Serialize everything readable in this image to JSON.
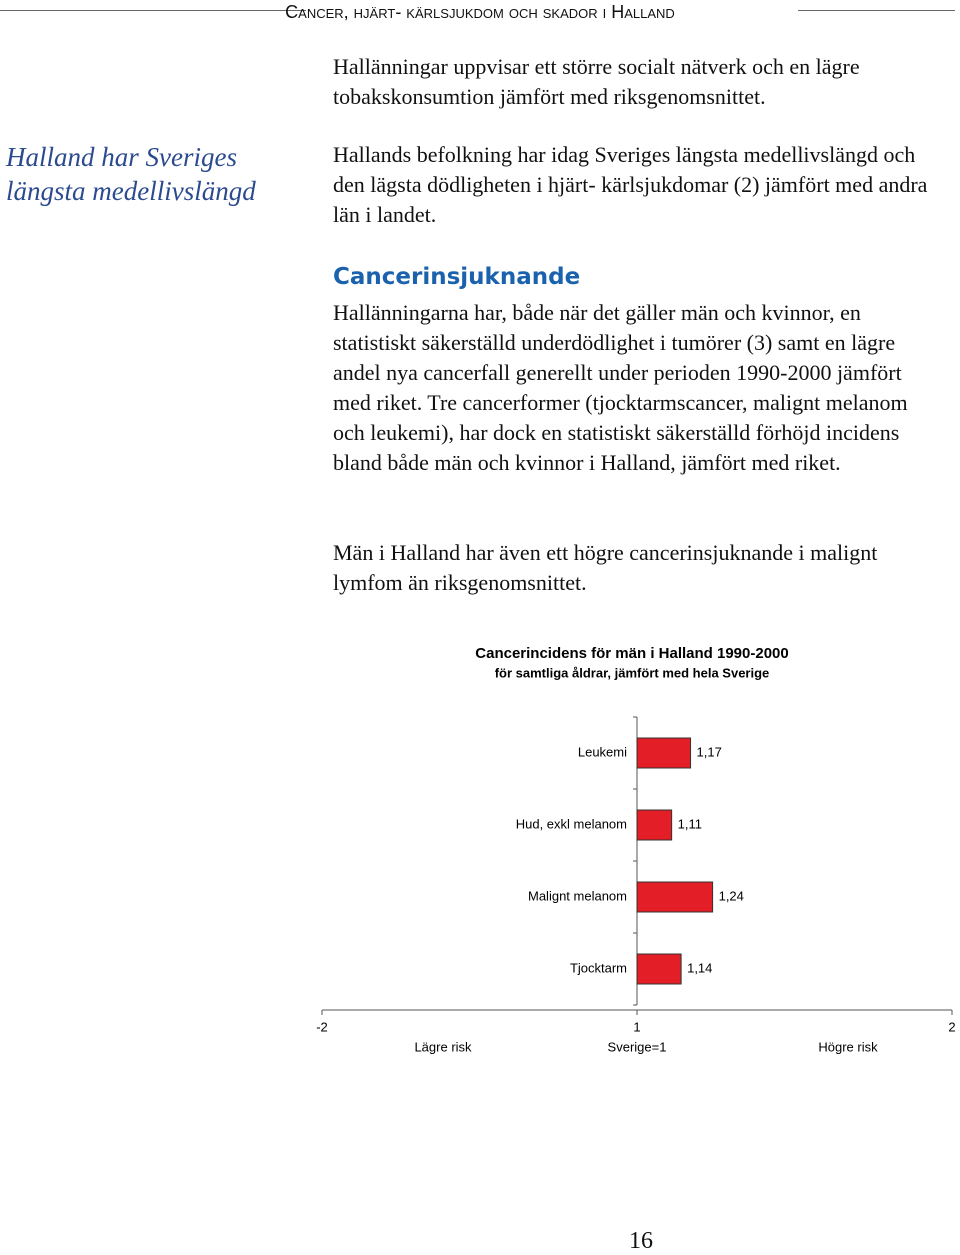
{
  "header": {
    "title": "Cancer, hjärt- kärlsjukdom och skador i Halland"
  },
  "intro": "Hallänningar uppvisar ett större socialt nätverk och en lägre tobakskonsumtion jämfört med riksgenomsnittet.",
  "sidebar": {
    "heading": "Halland har Sveriges längsta medellivslängd"
  },
  "lead": "Hallands befolkning har idag Sveriges längsta medellivslängd och den lägsta dödligheten i hjärt- kärlsjukdomar (2) jämfört med andra län i landet.",
  "section": {
    "heading": "Cancerinsjuknande",
    "paragraphs": [
      "Hallänningarna har, både när det gäller män och kvinnor, en statistiskt säkerställd underdödlighet i tumörer (3) samt en lägre andel nya cancerfall generellt under perioden 1990-2000 jämfört med riket. Tre cancerformer (tjocktarmscancer, malignt melanom och leukemi), har dock en statistiskt säkerställd förhöjd incidens bland både män och kvinnor i Halland, jämfört med riket.",
      "Män i Halland har även ett högre cancerinsjuknande i malignt lymfom än riksgenomsnittet."
    ]
  },
  "chart_data": {
    "type": "hbar",
    "title": "Cancerincidens för män i Halland 1990-2000",
    "subtitle": "för samtliga åldrar, jämfört med hela Sverige",
    "categories": [
      "Leukemi",
      "Hud, exkl melanom",
      "Malignt melanom",
      "Tjocktarm"
    ],
    "values": [
      1.17,
      1.11,
      1.24,
      1.14
    ],
    "value_labels": [
      "1,17",
      "1,11",
      "1,24",
      "1,14"
    ],
    "color": "#e41e26",
    "baseline": 1,
    "xlim": [
      -2,
      2
    ],
    "xticks": [
      -2,
      1,
      2
    ],
    "x_axis_labels": [
      "Lägre risk",
      "Sverige=1",
      "Högre risk"
    ]
  },
  "page_number": "16"
}
